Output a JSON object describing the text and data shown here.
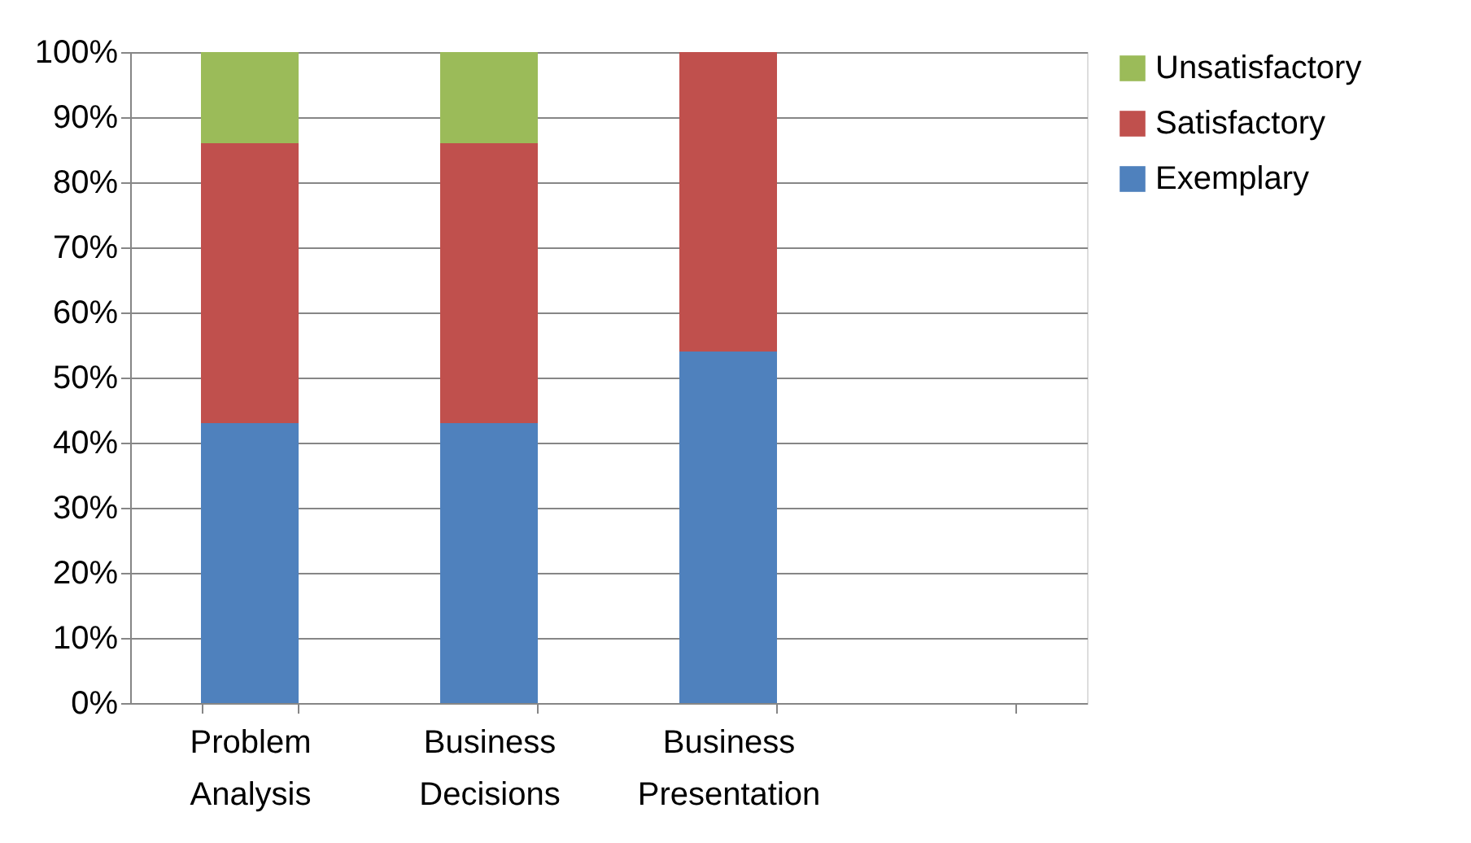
{
  "chart_data": {
    "type": "bar",
    "stacked": true,
    "categories": [
      "Problem Analysis",
      "Business Decisions",
      "Business Presentation",
      null
    ],
    "series": [
      {
        "name": "Exemplary",
        "color": "#4f81bd",
        "values": [
          43,
          43,
          54,
          null
        ]
      },
      {
        "name": "Satisfactory",
        "color": "#c0504d",
        "values": [
          43,
          43,
          46,
          null
        ]
      },
      {
        "name": "Unsatisfactory",
        "color": "#9bbb59",
        "values": [
          14,
          14,
          null,
          null
        ]
      }
    ],
    "ylim": [
      0,
      100
    ],
    "yticks": [
      {
        "value": 0,
        "label": "0%"
      },
      {
        "value": 10,
        "label": "10%"
      },
      {
        "value": 20,
        "label": "20%"
      },
      {
        "value": 30,
        "label": "30%"
      },
      {
        "value": 40,
        "label": "40%"
      },
      {
        "value": 50,
        "label": "50%"
      },
      {
        "value": 60,
        "label": "60%"
      },
      {
        "value": 70,
        "label": "70%"
      },
      {
        "value": 80,
        "label": "80%"
      },
      {
        "value": 90,
        "label": "90%"
      },
      {
        "value": 100,
        "label": "100%"
      }
    ],
    "grid": "y",
    "legend": "right"
  }
}
